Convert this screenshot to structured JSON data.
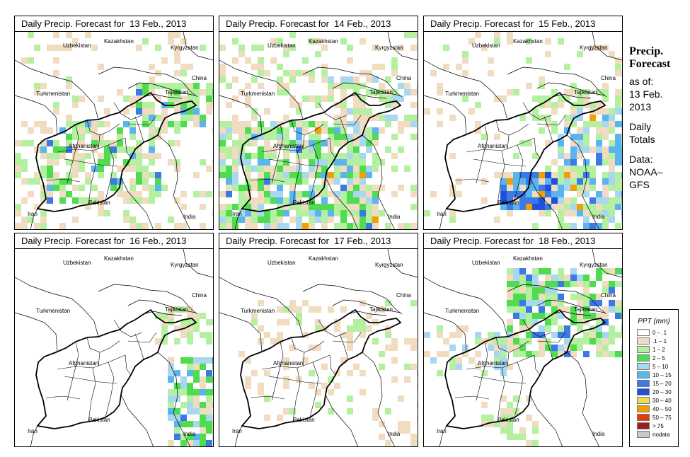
{
  "panels": [
    {
      "title": "Daily Precip. Forecast for  13 Feb., 2013",
      "pattern": "widespread"
    },
    {
      "title": "Daily Precip. Forecast for  14 Feb., 2013",
      "pattern": "heavy"
    },
    {
      "title": "Daily Precip. Forecast for  15 Feb., 2013",
      "pattern": "east"
    },
    {
      "title": "Daily Precip. Forecast for  16 Feb., 2013",
      "pattern": "southeast"
    },
    {
      "title": "Daily Precip. Forecast for  17 Feb., 2013",
      "pattern": "sparse"
    },
    {
      "title": "Daily Precip. Forecast for  18 Feb., 2013",
      "pattern": "north"
    }
  ],
  "map_labels": {
    "uzbekistan": "Uzbekistan",
    "kazakhstan": "Kazakhstan",
    "kyrgyzstan": "Kyrgyzstan",
    "china": "China",
    "turkmenistan": "Turkmenistan",
    "tajikistan": "Tajikistan",
    "afghanistan": "Afghanistan",
    "pakistan": "Pakistan",
    "iran": "Iran",
    "india": "India"
  },
  "sidebar": {
    "title_line1": "Precip.",
    "title_line2": "Forecast",
    "asof_line1": "as of:",
    "asof_line2": "13 Feb.",
    "asof_line3": "2013",
    "totals_line1": "Daily",
    "totals_line2": "Totals",
    "source_line1": "Data:",
    "source_line2": "NOAA–",
    "source_line3": "GFS"
  },
  "legend": {
    "title": "PPT (mm)",
    "entries": [
      {
        "label": "0 – .1",
        "color": "#ffffff"
      },
      {
        "label": ".1 – 1",
        "color": "#f0dcc0"
      },
      {
        "label": "1 – 2",
        "color": "#b4f0a0"
      },
      {
        "label": "2 – 5",
        "color": "#50dc50"
      },
      {
        "label": "5 – 10",
        "color": "#a8d8f0"
      },
      {
        "label": "10 – 15",
        "color": "#5ab4f0"
      },
      {
        "label": "15 – 20",
        "color": "#3c78e6"
      },
      {
        "label": "20 – 30",
        "color": "#1e50dc"
      },
      {
        "label": "30 – 40",
        "color": "#f0dc50"
      },
      {
        "label": "40 – 50",
        "color": "#f0a000"
      },
      {
        "label": "50 – 75",
        "color": "#e63c00"
      },
      {
        "label": "> 75",
        "color": "#a01e1e"
      },
      {
        "label": "nodata",
        "color": "#c8c8c8"
      }
    ]
  }
}
